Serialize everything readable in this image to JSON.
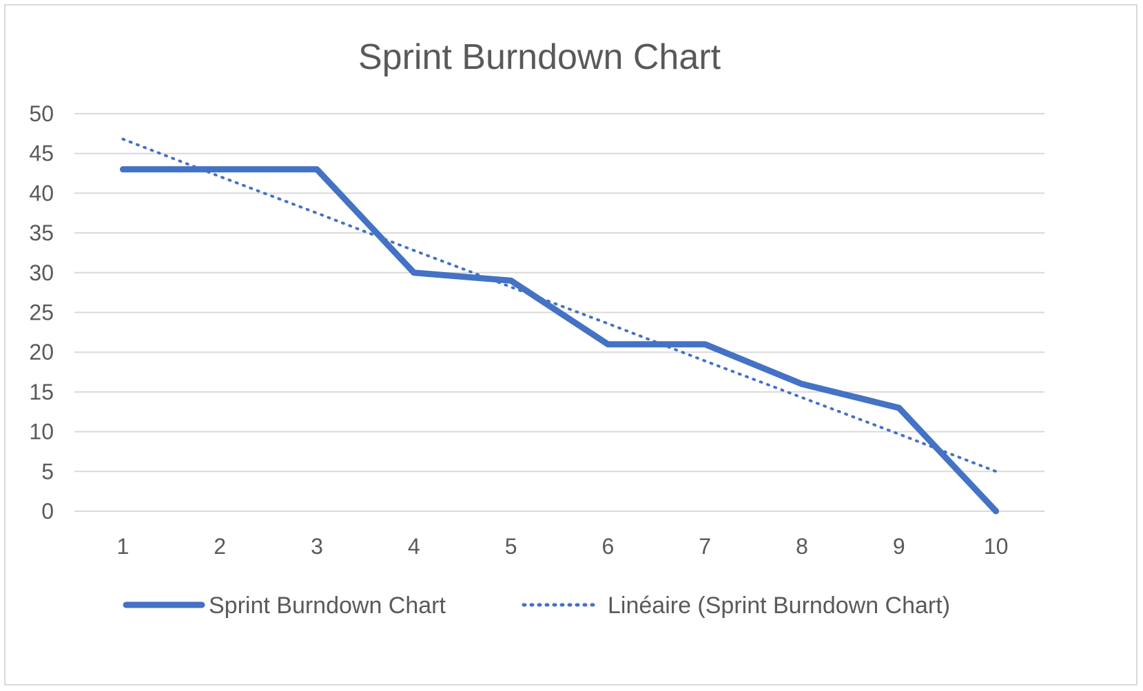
{
  "chart_data": {
    "type": "line",
    "title": "Sprint Burndown Chart",
    "xlabel": "",
    "ylabel": "",
    "categories": [
      "1",
      "2",
      "3",
      "4",
      "5",
      "6",
      "7",
      "8",
      "9",
      "10"
    ],
    "ylim": [
      0,
      50
    ],
    "yticks": [
      0,
      5,
      10,
      15,
      20,
      25,
      30,
      35,
      40,
      45,
      50
    ],
    "grid": true,
    "legend_position": "bottom",
    "series": [
      {
        "name": "Sprint Burndown Chart",
        "style": "solid",
        "color": "#4472c4",
        "values": [
          43,
          43,
          43,
          30,
          29,
          21,
          21,
          16,
          13,
          0
        ]
      },
      {
        "name": "Linéaire (Sprint Burndown Chart)",
        "style": "dotted",
        "color": "#4472c4",
        "trendline": "linear",
        "values": [
          46.8,
          42.1,
          37.5,
          32.8,
          28.2,
          23.6,
          18.9,
          14.3,
          9.7,
          5.0
        ]
      }
    ]
  }
}
